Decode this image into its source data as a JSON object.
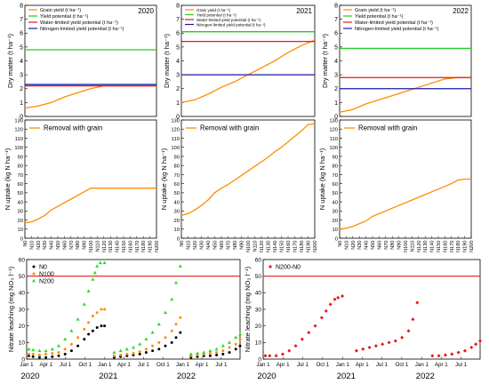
{
  "colors": {
    "grain": "#ff8c00",
    "yield_potential": "#22cc22",
    "water_limited": "#e31a1c",
    "nitrogen_limited": "#1a1aa8",
    "removal": "#ff8c00",
    "threshold": "#e31a1c",
    "n0": "#000000",
    "n100": "#ff8c00",
    "n200": "#22dd22",
    "diff": "#ee1111"
  },
  "chart_data": [
    {
      "type": "line",
      "panel": "dm-2020",
      "year": "2020",
      "ylabel": "Dry matter (t ha⁻¹)",
      "ylim": [
        0,
        8
      ],
      "yticks": [
        "0",
        "1",
        "2",
        "3",
        "4",
        "5",
        "6",
        "7",
        "8"
      ],
      "legend": [
        {
          "name": "Grain yield (t ha⁻¹)",
          "key": "grain"
        },
        {
          "name": "Yield potential (t ha⁻¹)",
          "key": "yield_potential"
        },
        {
          "name": "Water-limited yield potential (t ha⁻¹)",
          "key": "water_limited"
        },
        {
          "name": "Nitrogen-limited yield potential (t ha⁻¹)",
          "key": "nitrogen_limited"
        }
      ],
      "x": [
        0,
        20,
        40,
        60,
        80,
        100,
        120,
        140,
        160,
        180,
        200
      ],
      "series": [
        {
          "key": "grain",
          "values": [
            0.6,
            0.75,
            1.0,
            1.4,
            1.7,
            2.0,
            2.2,
            2.2,
            2.2,
            2.2,
            2.2
          ]
        },
        {
          "key": "yield_potential",
          "constant": 4.8
        },
        {
          "key": "water_limited",
          "constant": 2.2
        },
        {
          "key": "nitrogen_limited",
          "constant": 2.3
        }
      ]
    },
    {
      "type": "line",
      "panel": "dm-2021",
      "year": "2021",
      "ylabel": "Dry matter (t ha⁻¹)",
      "ylim": [
        0,
        8
      ],
      "yticks": [
        "0",
        "1",
        "2",
        "3",
        "4",
        "5",
        "6",
        "7",
        "8"
      ],
      "legend": [
        {
          "name": "Grain yield (t ha⁻¹)",
          "key": "grain"
        },
        {
          "name": "Yield potential (t ha⁻¹)",
          "key": "yield_potential"
        },
        {
          "name": "Water-limited yield potential (t ha⁻¹)",
          "key": "water_limited"
        },
        {
          "name": "Nitrogen-limited yield potential (t ha⁻¹)",
          "key": "nitrogen_limited"
        }
      ],
      "x": [
        0,
        20,
        40,
        60,
        80,
        100,
        120,
        140,
        160,
        180,
        200
      ],
      "series": [
        {
          "key": "grain",
          "values": [
            1.0,
            1.2,
            1.6,
            2.1,
            2.5,
            3.0,
            3.5,
            4.0,
            4.6,
            5.1,
            5.5
          ]
        },
        {
          "key": "yield_potential",
          "constant": 6.1
        },
        {
          "key": "water_limited",
          "constant": 5.4
        },
        {
          "key": "nitrogen_limited",
          "constant": 3.0
        }
      ]
    },
    {
      "type": "line",
      "panel": "dm-2022",
      "year": "2022",
      "ylabel": "Dry matter (t ha⁻¹)",
      "ylim": [
        0,
        8
      ],
      "yticks": [
        "0",
        "1",
        "2",
        "3",
        "4",
        "5",
        "6",
        "7",
        "8"
      ],
      "legend": [
        {
          "name": "Grain yield (t ha⁻¹)",
          "key": "grain"
        },
        {
          "name": "Yield potential (t ha⁻¹)",
          "key": "yield_potential"
        },
        {
          "name": "Water-limited yield potential (t ha⁻¹)",
          "key": "water_limited"
        },
        {
          "name": "Nitrogen-limited yield potential (t ha⁻¹)",
          "key": "nitrogen_limited"
        }
      ],
      "x": [
        0,
        20,
        40,
        60,
        80,
        100,
        120,
        140,
        160,
        180,
        200
      ],
      "series": [
        {
          "key": "grain",
          "values": [
            0.3,
            0.5,
            0.9,
            1.2,
            1.5,
            1.8,
            2.1,
            2.4,
            2.7,
            2.8,
            2.8
          ]
        },
        {
          "key": "yield_potential",
          "constant": 4.9
        },
        {
          "key": "water_limited",
          "constant": 2.8
        },
        {
          "key": "nitrogen_limited",
          "constant": 2.0
        }
      ]
    },
    {
      "type": "line",
      "panel": "nu-2020",
      "ylabel": "N uptake (kg N ha⁻¹)",
      "ylim": [
        0,
        130
      ],
      "yticks": [
        "0",
        "10",
        "20",
        "30",
        "40",
        "50",
        "60",
        "70",
        "80",
        "90",
        "100",
        "110",
        "120",
        "130"
      ],
      "legend": [
        {
          "name": "Removal with grain",
          "key": "removal"
        }
      ],
      "categories": [
        "N0",
        "N10",
        "N20",
        "N30",
        "N40",
        "N50",
        "N60",
        "N70",
        "N80",
        "N90",
        "N100",
        "N110",
        "N120",
        "N130",
        "N140",
        "N150",
        "N160",
        "N170",
        "N180",
        "N190",
        "N200"
      ],
      "series": [
        {
          "key": "removal",
          "values": [
            17,
            18,
            21,
            25,
            31,
            35,
            39,
            43,
            47,
            51,
            55,
            55,
            55,
            55,
            55,
            55,
            55,
            55,
            55,
            55,
            55
          ]
        }
      ]
    },
    {
      "type": "line",
      "panel": "nu-2021",
      "ylabel": "N uptake (kg N ha⁻¹)",
      "ylim": [
        0,
        130
      ],
      "yticks": [
        "0",
        "10",
        "20",
        "30",
        "40",
        "50",
        "60",
        "70",
        "80",
        "90",
        "100",
        "110",
        "120",
        "130"
      ],
      "legend": [
        {
          "name": "Removal with grain",
          "key": "removal"
        }
      ],
      "categories": [
        "N0",
        "N10",
        "N20",
        "N30",
        "N40",
        "N50",
        "N60",
        "N70",
        "N80",
        "N90",
        "N100",
        "N110",
        "N120",
        "N130",
        "N140",
        "N150",
        "N160",
        "N170",
        "N180",
        "N190",
        "N200"
      ],
      "series": [
        {
          "key": "removal",
          "values": [
            25,
            27,
            31,
            36,
            42,
            50,
            55,
            59,
            64,
            69,
            74,
            79,
            84,
            89,
            95,
            100,
            106,
            112,
            118,
            125,
            126
          ]
        }
      ]
    },
    {
      "type": "line",
      "panel": "nu-2022",
      "ylabel": "N uptake (kg N ha⁻¹)",
      "ylim": [
        0,
        130
      ],
      "yticks": [
        "0",
        "10",
        "20",
        "30",
        "40",
        "50",
        "60",
        "70",
        "80",
        "90",
        "100",
        "110",
        "120",
        "130"
      ],
      "legend": [
        {
          "name": "Removal with grain",
          "key": "removal"
        }
      ],
      "categories": [
        "N0",
        "N10",
        "N20",
        "N30",
        "N40",
        "N50",
        "N60",
        "N70",
        "N80",
        "N90",
        "N100",
        "N110",
        "N120",
        "N130",
        "N140",
        "N150",
        "N160",
        "N170",
        "N180",
        "N190",
        "N200"
      ],
      "series": [
        {
          "key": "removal",
          "values": [
            10,
            11,
            13,
            16,
            19,
            24,
            27,
            30,
            33,
            36,
            39,
            42,
            45,
            48,
            51,
            54,
            57,
            60,
            64,
            65,
            65
          ]
        }
      ]
    },
    {
      "type": "scatter",
      "panel": "leach-all",
      "ylabel": "Nitrate leaching (mg NO₃ l⁻¹)",
      "ylim": [
        0,
        60
      ],
      "yticks": [
        "0",
        "10",
        "20",
        "30",
        "40",
        "50",
        "60"
      ],
      "xlim": [
        0,
        1000
      ],
      "xticks": [
        {
          "pos": 0,
          "label": "Jan 1"
        },
        {
          "pos": 91,
          "label": "Apr 1"
        },
        {
          "pos": 182,
          "label": "Jul 1"
        },
        {
          "pos": 274,
          "label": "Oct 1"
        },
        {
          "pos": 366,
          "label": "Jan 1"
        },
        {
          "pos": 456,
          "label": "Apr 1"
        },
        {
          "pos": 547,
          "label": "Jul 1"
        },
        {
          "pos": 639,
          "label": "Oct 1"
        },
        {
          "pos": 731,
          "label": "Jan 1"
        },
        {
          "pos": 821,
          "label": "Apr 1"
        },
        {
          "pos": 912,
          "label": "Jul 1"
        },
        {
          "pos": 1004,
          "label": "Oct 1"
        }
      ],
      "year_labels": [
        {
          "pos": 0,
          "label": "2020"
        },
        {
          "pos": 366,
          "label": "2021"
        },
        {
          "pos": 731,
          "label": "2022"
        }
      ],
      "threshold": 50,
      "legend": [
        {
          "name": "N0",
          "key": "n0",
          "marker": "circle"
        },
        {
          "name": "N100",
          "key": "n100",
          "marker": "circle"
        },
        {
          "name": "N200",
          "key": "n200",
          "marker": "triangle"
        }
      ],
      "series": [
        {
          "key": "n0",
          "segments": [
            {
              "x": [
                10,
                30,
                60,
                90,
                120,
                150,
                180,
                210,
                240,
                270,
                290,
                310,
                330,
                350,
                365
              ],
              "y": [
                2,
                1.5,
                1,
                1,
                1.5,
                2,
                3,
                5,
                8,
                12,
                15,
                17,
                19,
                20,
                20
              ]
            },
            {
              "x": [
                410,
                440,
                470,
                500,
                530,
                560,
                590,
                620,
                650,
                680,
                700,
                720
              ],
              "y": [
                1,
                1.5,
                2,
                2.5,
                3,
                4,
                5,
                6,
                8,
                10,
                13,
                16
              ]
            },
            {
              "x": [
                770,
                800,
                830,
                860,
                890,
                920,
                950,
                980,
                1000
              ],
              "y": [
                1,
                1.5,
                2,
                2,
                2.5,
                3,
                4,
                6,
                8
              ]
            }
          ]
        },
        {
          "key": "n100",
          "segments": [
            {
              "x": [
                10,
                30,
                60,
                90,
                120,
                150,
                180,
                210,
                240,
                270,
                290,
                310,
                330,
                350,
                365
              ],
              "y": [
                3,
                3,
                2.5,
                3,
                3.5,
                4,
                6,
                9,
                13,
                18,
                22,
                26,
                28,
                30,
                30
              ]
            },
            {
              "x": [
                410,
                440,
                470,
                500,
                530,
                560,
                590,
                620,
                650,
                680,
                700,
                720
              ],
              "y": [
                2,
                2.5,
                3,
                3.5,
                4.5,
                6,
                8,
                10,
                13,
                17,
                21,
                25
              ]
            },
            {
              "x": [
                770,
                800,
                830,
                860,
                890,
                920,
                950,
                980,
                1000
              ],
              "y": [
                2,
                2.5,
                3,
                3.5,
                4,
                5,
                7,
                9,
                12
              ]
            }
          ]
        },
        {
          "key": "n200",
          "segments": [
            {
              "x": [
                10,
                30,
                60,
                90,
                120,
                150,
                180,
                210,
                240,
                270,
                290,
                310,
                320,
                330,
                345,
                365
              ],
              "y": [
                6,
                5.5,
                5,
                5,
                6,
                8,
                12,
                17,
                24,
                33,
                41,
                48,
                52,
                56,
                58,
                58
              ]
            },
            {
              "x": [
                410,
                440,
                470,
                500,
                530,
                560,
                590,
                620,
                650,
                680,
                700,
                720
              ],
              "y": [
                4,
                5,
                6,
                7,
                9,
                12,
                16,
                21,
                28,
                36,
                46,
                56
              ]
            },
            {
              "x": [
                770,
                800,
                830,
                860,
                890,
                920,
                950,
                980,
                1000
              ],
              "y": [
                3,
                3.5,
                4,
                5,
                6,
                8,
                10,
                13,
                15
              ]
            }
          ]
        }
      ]
    },
    {
      "type": "scatter",
      "panel": "leach-diff",
      "ylabel": "Nitrate leaching (mg NO₃ l⁻¹)",
      "ylim": [
        0,
        60
      ],
      "yticks": [
        "0",
        "10",
        "20",
        "30",
        "40",
        "50",
        "60"
      ],
      "xlim": [
        0,
        1000
      ],
      "xticks": [
        {
          "pos": 0,
          "label": "Jan 1"
        },
        {
          "pos": 91,
          "label": "Apr 1"
        },
        {
          "pos": 182,
          "label": "Jul 1"
        },
        {
          "pos": 274,
          "label": "Oct 1"
        },
        {
          "pos": 366,
          "label": "Jan 1"
        },
        {
          "pos": 456,
          "label": "Apr 1"
        },
        {
          "pos": 547,
          "label": "Jul 1"
        },
        {
          "pos": 639,
          "label": "Oct 1"
        },
        {
          "pos": 731,
          "label": "Jan 1"
        },
        {
          "pos": 821,
          "label": "Apr 1"
        },
        {
          "pos": 912,
          "label": "Jul 1"
        },
        {
          "pos": 1004,
          "label": "Oct 1"
        }
      ],
      "year_labels": [
        {
          "pos": 0,
          "label": "2020"
        },
        {
          "pos": 366,
          "label": "2021"
        },
        {
          "pos": 731,
          "label": "2022"
        }
      ],
      "threshold": 50,
      "legend": [
        {
          "name": "N200-N0",
          "key": "diff",
          "marker": "diamond"
        }
      ],
      "series": [
        {
          "key": "diff",
          "segments": [
            {
              "x": [
                10,
                30,
                60,
                90,
                120,
                150,
                180,
                210,
                240,
                270,
                290,
                310,
                330,
                345,
                365
              ],
              "y": [
                2,
                2,
                2,
                3,
                5,
                8,
                12,
                16,
                20,
                25,
                29,
                33,
                36,
                37,
                38
              ]
            },
            {
              "x": [
                430,
                460,
                490,
                520,
                550,
                580,
                610,
                640,
                670,
                690,
                710
              ],
              "y": [
                5,
                6,
                7,
                8,
                9,
                10,
                11,
                13,
                17,
                24,
                34
              ]
            },
            {
              "x": [
                780,
                810,
                840,
                870,
                900,
                930,
                960,
                980,
                1000
              ],
              "y": [
                2,
                2,
                2.5,
                3,
                4,
                5,
                7,
                9,
                11
              ]
            }
          ]
        }
      ]
    }
  ]
}
